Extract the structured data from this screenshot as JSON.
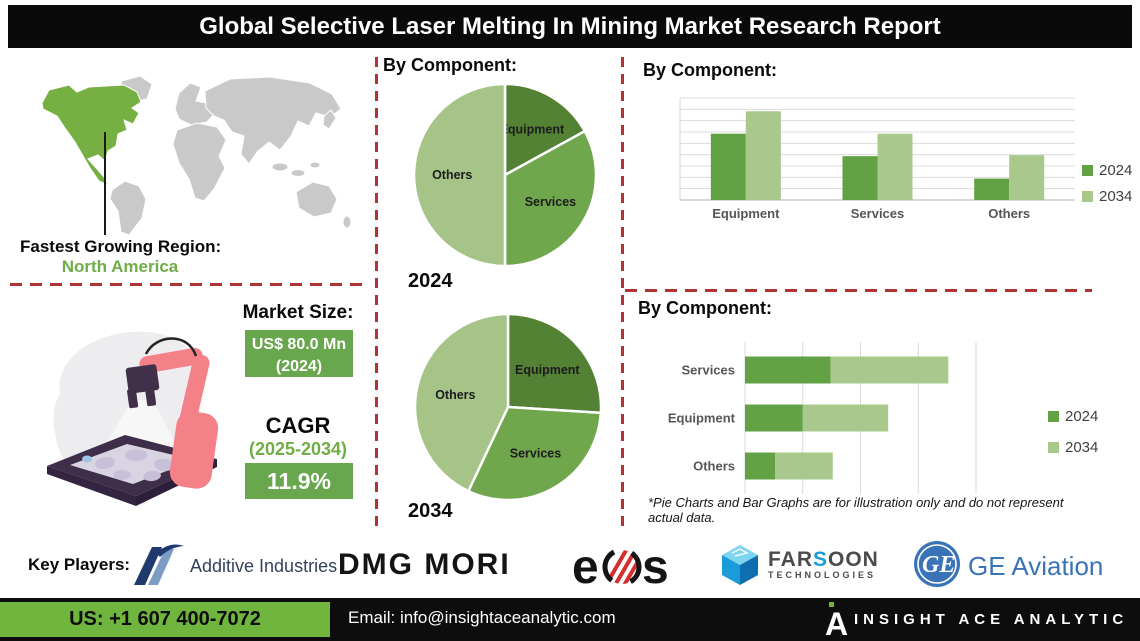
{
  "title": "Global Selective Laser Melting In Mining Market Research Report",
  "colors": {
    "banner_bg": "#0a0a0a",
    "dash_red": "#b13434",
    "map_green": "#76b043",
    "map_gray": "#c9c9c9",
    "text_green": "#70ad47",
    "box_green": "#68a74d",
    "footer_green": "#6fb53e",
    "brand_blue": "#3b73b8",
    "farsoon_blue": "#1b9cd8"
  },
  "region": {
    "label": "Fastest Growing Region:",
    "value": "North America"
  },
  "market_size": {
    "label": "Market Size:",
    "value": "US$ 80.0 Mn",
    "period": "(2024)"
  },
  "cagr": {
    "label": "CAGR",
    "period": "(2025-2034)",
    "value": "11.9%"
  },
  "chart_data": [
    {
      "type": "pie",
      "title": "By Component:",
      "year_label": "2024",
      "slices": [
        {
          "label": "Equipment",
          "value": 17,
          "color": "#548235"
        },
        {
          "label": "Services",
          "value": 33,
          "color": "#70a74d"
        },
        {
          "label": "Others",
          "value": 50,
          "color": "#a6c488"
        }
      ]
    },
    {
      "type": "pie",
      "title": "By Component:",
      "year_label": "2034",
      "slices": [
        {
          "label": "Equipment",
          "value": 26,
          "color": "#548235"
        },
        {
          "label": "Services",
          "value": 31,
          "color": "#70a74d"
        },
        {
          "label": "Others",
          "value": 43,
          "color": "#a6c488"
        }
      ]
    },
    {
      "type": "bar",
      "title": "By Component:",
      "categories": [
        "Equipment",
        "Services",
        "Others"
      ],
      "series": [
        {
          "name": "2024",
          "color": "#62a144",
          "values": [
            65,
            43,
            21
          ]
        },
        {
          "name": "2034",
          "color": "#a9c98c",
          "values": [
            87,
            65,
            44
          ]
        }
      ],
      "ylim": [
        0,
        100
      ],
      "grid": true,
      "legend_position": "right"
    },
    {
      "type": "stacked-bar-horizontal",
      "title": "By Component:",
      "categories": [
        "Services",
        "Equipment",
        "Others"
      ],
      "series": [
        {
          "name": "2024",
          "color": "#62a144",
          "values": [
            37,
            25,
            13
          ]
        },
        {
          "name": "2034",
          "color": "#a9c98c",
          "values": [
            51,
            37,
            25
          ]
        }
      ],
      "xlim": [
        0,
        100
      ],
      "grid": true,
      "legend_position": "right"
    }
  ],
  "footnote": "*Pie Charts and Bar Graphs are for illustration only and do not represent actual data.",
  "key_players": {
    "label": "Key Players:",
    "additive": {
      "name": "Additive Industries"
    },
    "dmg": {
      "name": "DMG MORI"
    },
    "eos": {
      "left": "e",
      "right": "s"
    },
    "farsoon": {
      "p1": "FAR",
      "p2": "S",
      "p3": "OON",
      "sub": "TECHNOLOGIES"
    },
    "ge": {
      "monogram": "GE",
      "name": "GE Aviation"
    }
  },
  "footer": {
    "phone": "US: +1 607 400-7072",
    "email": "Email: info@insightaceanalytic.com",
    "brand": "INSIGHT ACE ANALYTIC"
  }
}
